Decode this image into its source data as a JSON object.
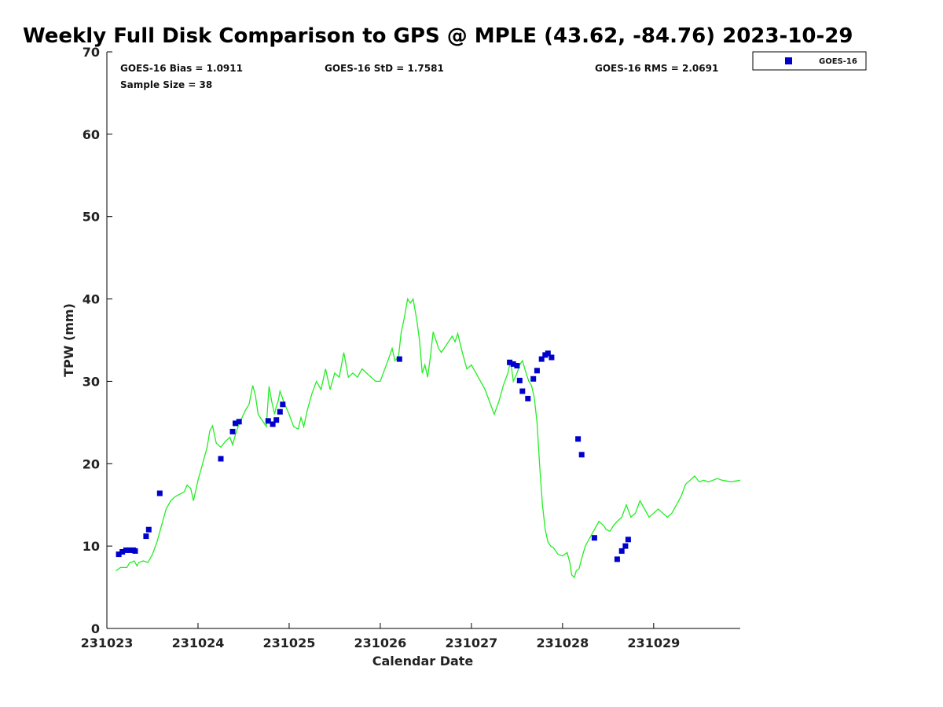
{
  "chart_data": {
    "type": "scatter",
    "title": "Weekly Full Disk Comparison to GPS @ MPLE (43.62, -84.76) 2023-10-29",
    "xlabel": "Calendar Date",
    "ylabel": "TPW (mm)",
    "xlim": [
      0,
      6.95
    ],
    "ylim": [
      0,
      70
    ],
    "x_ticks": [
      0,
      1,
      2,
      3,
      4,
      5,
      6
    ],
    "x_tick_labels": [
      "231023",
      "231024",
      "231025",
      "231026",
      "231027",
      "231028",
      "231029"
    ],
    "y_ticks": [
      0,
      10,
      20,
      30,
      40,
      50,
      60,
      70
    ],
    "y_tick_labels": [
      "0",
      "10",
      "20",
      "30",
      "40",
      "50",
      "60",
      "70"
    ],
    "stats": {
      "bias": "GOES-16 Bias = 1.0911",
      "std": "GOES-16 StD = 1.7581",
      "rms": "GOES-16 RMS = 2.0691",
      "sample": "Sample Size = 38"
    },
    "legend": {
      "label": "GOES-16",
      "position": "top-right outside",
      "color": "#0000cc"
    },
    "colors": {
      "gps_line": "#22ee22",
      "goes_points": "#0000cc",
      "axis": "#000000"
    },
    "series": [
      {
        "name": "GPS",
        "kind": "line",
        "x": [
          0.1,
          0.15,
          0.22,
          0.25,
          0.27,
          0.3,
          0.33,
          0.35,
          0.4,
          0.45,
          0.5,
          0.55,
          0.6,
          0.65,
          0.7,
          0.75,
          0.8,
          0.85,
          0.88,
          0.92,
          0.95,
          1.0,
          1.05,
          1.1,
          1.13,
          1.16,
          1.2,
          1.25,
          1.3,
          1.35,
          1.38,
          1.41,
          1.44,
          1.48,
          1.52,
          1.56,
          1.6,
          1.63,
          1.66,
          1.69,
          1.72,
          1.75,
          1.78,
          1.81,
          1.84,
          1.86,
          1.88,
          1.9,
          1.92,
          1.94,
          1.96,
          2.0,
          2.05,
          2.1,
          2.13,
          2.16,
          2.2,
          2.25,
          2.3,
          2.35,
          2.4,
          2.45,
          2.5,
          2.55,
          2.6,
          2.65,
          2.7,
          2.75,
          2.8,
          2.85,
          2.9,
          2.95,
          3.0,
          3.05,
          3.1,
          3.13,
          3.16,
          3.2,
          3.23,
          3.26,
          3.3,
          3.33,
          3.36,
          3.4,
          3.43,
          3.46,
          3.49,
          3.52,
          3.55,
          3.58,
          3.61,
          3.64,
          3.67,
          3.7,
          3.73,
          3.76,
          3.79,
          3.82,
          3.85,
          3.9,
          3.95,
          4.0,
          4.05,
          4.1,
          4.15,
          4.2,
          4.25,
          4.3,
          4.35,
          4.4,
          4.43,
          4.46,
          4.5,
          4.53,
          4.56,
          4.6,
          4.63,
          4.66,
          4.69,
          4.72,
          4.75,
          4.78,
          4.81,
          4.84,
          4.87,
          4.9,
          4.95,
          5.0,
          5.05,
          5.08,
          5.1,
          5.13,
          5.15,
          5.18,
          5.21,
          5.25,
          5.3,
          5.35,
          5.4,
          5.45,
          5.48,
          5.52,
          5.56,
          5.6,
          5.65,
          5.7,
          5.75,
          5.8,
          5.85,
          5.9,
          5.95,
          6.0,
          6.05,
          6.1,
          6.15,
          6.2,
          6.25,
          6.3,
          6.35,
          6.4,
          6.45,
          6.5,
          6.55,
          6.6,
          6.65,
          6.7,
          6.75,
          6.8,
          6.85,
          6.9,
          6.95
        ],
        "y": [
          7.0,
          7.4,
          7.4,
          8.0,
          8.0,
          8.2,
          7.6,
          8.0,
          8.2,
          8.0,
          9.0,
          10.5,
          12.5,
          14.5,
          15.5,
          16.0,
          16.3,
          16.6,
          17.4,
          17.0,
          15.5,
          18.0,
          20.0,
          22.0,
          24.0,
          24.6,
          22.5,
          22.0,
          22.7,
          23.2,
          22.3,
          23.5,
          24.5,
          25.5,
          26.5,
          27.2,
          29.5,
          28.3,
          26.0,
          25.5,
          25.0,
          24.5,
          29.4,
          27.5,
          26.0,
          27.0,
          27.6,
          28.8,
          28.2,
          27.5,
          27.0,
          26.0,
          24.5,
          24.2,
          25.6,
          24.5,
          26.5,
          28.5,
          30.0,
          29.0,
          31.5,
          29.0,
          31.0,
          30.5,
          33.5,
          30.5,
          31.0,
          30.5,
          31.5,
          31.0,
          30.5,
          30.0,
          30.0,
          31.5,
          33.0,
          34.0,
          32.5,
          33.0,
          36.0,
          37.5,
          40.0,
          39.5,
          40.0,
          37.5,
          35.0,
          31.0,
          32.0,
          30.5,
          33.0,
          36.0,
          35.0,
          34.0,
          33.5,
          34.0,
          34.5,
          35.0,
          35.5,
          34.8,
          35.8,
          33.5,
          31.5,
          32.0,
          31.0,
          30.0,
          29.0,
          27.5,
          26.0,
          27.5,
          29.5,
          31.0,
          32.5,
          30.0,
          31.0,
          32.0,
          32.5,
          31.0,
          30.0,
          29.5,
          28.0,
          25.0,
          19.5,
          15.0,
          12.0,
          10.5,
          10.0,
          9.8,
          9.0,
          8.8,
          9.2,
          8.0,
          6.5,
          6.2,
          7.0,
          7.2,
          8.5,
          10.0,
          11.0,
          12.0,
          13.0,
          12.5,
          12.0,
          11.8,
          12.5,
          13.0,
          13.5,
          15.0,
          13.5,
          14.0,
          15.5,
          14.5,
          13.5,
          14.0,
          14.5,
          14.0,
          13.5,
          14.0,
          15.0,
          16.0,
          17.5,
          18.0,
          18.5,
          17.8,
          18.0,
          17.8,
          18.0,
          18.2,
          18.0,
          17.9,
          17.8,
          17.9,
          18.0
        ]
      },
      {
        "name": "GOES-16",
        "kind": "points",
        "x": [
          0.13,
          0.17,
          0.21,
          0.25,
          0.29,
          0.31,
          0.43,
          0.46,
          0.58,
          1.25,
          1.38,
          1.41,
          1.45,
          1.77,
          1.82,
          1.86,
          1.9,
          1.93,
          3.21,
          4.42,
          4.46,
          4.5,
          4.53,
          4.56,
          4.62,
          4.68,
          4.72,
          4.77,
          4.81,
          4.84,
          4.88,
          5.17,
          5.21,
          5.35,
          5.6,
          5.65,
          5.69,
          5.72
        ],
        "y": [
          9.0,
          9.3,
          9.5,
          9.5,
          9.5,
          9.4,
          11.2,
          12.0,
          16.4,
          20.6,
          23.9,
          24.9,
          25.1,
          25.2,
          24.8,
          25.3,
          26.3,
          27.2,
          32.7,
          32.3,
          32.1,
          31.9,
          30.1,
          28.8,
          27.9,
          30.3,
          31.3,
          32.7,
          33.2,
          33.4,
          32.9,
          23.0,
          21.1,
          11.0,
          8.4,
          9.4,
          10.0,
          10.8
        ]
      }
    ]
  }
}
